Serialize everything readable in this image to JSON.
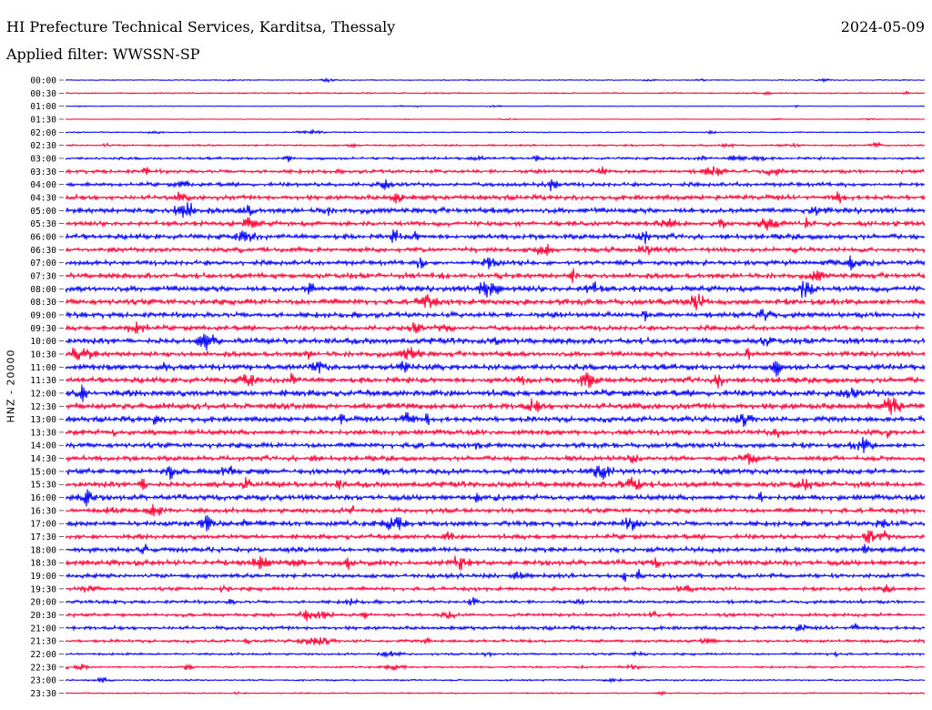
{
  "header": {
    "title": "HI Prefecture Technical Services, Karditsa, Thessaly",
    "date": "2024-05-09",
    "filter": "Applied filter: WWSSN-SP",
    "channel_label": "HNZ - 20000"
  },
  "colors": {
    "even_trace": "#0000ff",
    "odd_trace": "#ff0033",
    "background": "#ffffff"
  },
  "chart_data": {
    "type": "line",
    "title": "HI Prefecture Technical Services, Karditsa, Thessaly",
    "ylabel": "HNZ - 20000",
    "row_labels": [
      "00:00",
      "00:30",
      "01:00",
      "01:30",
      "02:00",
      "02:30",
      "03:00",
      "03:30",
      "04:00",
      "04:30",
      "05:00",
      "05:30",
      "06:00",
      "06:30",
      "07:00",
      "07:30",
      "08:00",
      "08:30",
      "09:00",
      "09:30",
      "10:00",
      "10:30",
      "11:00",
      "11:30",
      "12:00",
      "12:30",
      "13:00",
      "13:30",
      "14:00",
      "14:30",
      "15:00",
      "15:30",
      "16:00",
      "16:30",
      "17:00",
      "17:30",
      "18:00",
      "18:30",
      "19:00",
      "19:30",
      "20:00",
      "20:30",
      "21:00",
      "21:30",
      "22:00",
      "22:30",
      "23:00",
      "23:30"
    ],
    "noise_level": [
      0.5,
      0.7,
      0.4,
      0.3,
      0.6,
      1.0,
      1.4,
      2.0,
      2.2,
      2.6,
      3.0,
      2.6,
      2.8,
      2.5,
      2.6,
      2.8,
      3.2,
      3.2,
      3.0,
      2.6,
      3.2,
      2.8,
      3.2,
      3.0,
      3.6,
      3.4,
      3.0,
      2.8,
      2.8,
      2.6,
      3.0,
      3.0,
      3.0,
      2.6,
      2.8,
      2.6,
      2.8,
      2.8,
      2.4,
      2.0,
      1.8,
      1.8,
      2.0,
      1.6,
      1.2,
      1.0,
      0.9,
      0.7
    ],
    "grid": false
  }
}
